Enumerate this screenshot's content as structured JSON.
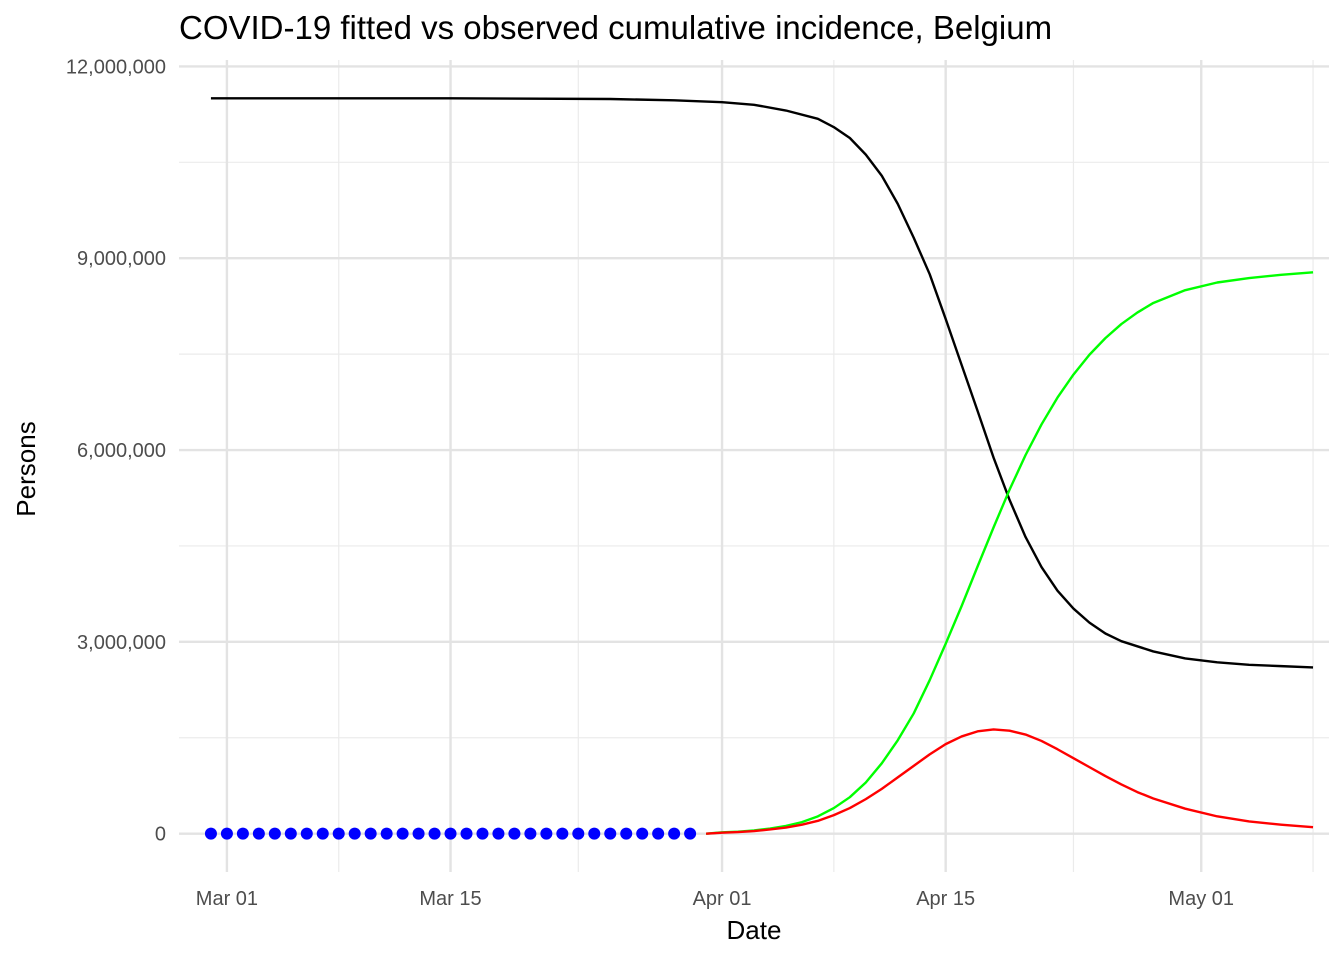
{
  "chart_data": {
    "type": "line",
    "title": "COVID-19 fitted vs observed cumulative incidence, Belgium",
    "xlabel": "Date",
    "ylabel": "Persons",
    "x_start": "2020-02-29",
    "x_end": "2020-05-08",
    "xlim": [
      "2020-02-27",
      "2020-05-09"
    ],
    "ylim": [
      -600000,
      12100000
    ],
    "x_ticks": [
      {
        "date": "2020-03-01",
        "label": "Mar 01"
      },
      {
        "date": "2020-03-15",
        "label": "Mar 15"
      },
      {
        "date": "2020-04-01",
        "label": "Apr 01"
      },
      {
        "date": "2020-04-15",
        "label": "Apr 15"
      },
      {
        "date": "2020-05-01",
        "label": "May 01"
      }
    ],
    "x_minor_ticks": [
      "2020-03-08",
      "2020-03-23",
      "2020-04-08",
      "2020-04-23",
      "2020-05-08"
    ],
    "y_ticks": [
      {
        "value": 0,
        "label": "0"
      },
      {
        "value": 3000000,
        "label": "3,000,000"
      },
      {
        "value": 6000000,
        "label": "6,000,000"
      },
      {
        "value": 9000000,
        "label": "9,000,000"
      },
      {
        "value": 12000000,
        "label": "12,000,000"
      }
    ],
    "grid": true,
    "legend": "none",
    "series": [
      {
        "color": "#000000",
        "style": "line",
        "points": [
          [
            "2020-02-29",
            11500000
          ],
          [
            "2020-03-15",
            11500000
          ],
          [
            "2020-03-25",
            11490000
          ],
          [
            "2020-03-29",
            11470000
          ],
          [
            "2020-04-01",
            11440000
          ],
          [
            "2020-04-03",
            11400000
          ],
          [
            "2020-04-05",
            11310000
          ],
          [
            "2020-04-07",
            11180000
          ],
          [
            "2020-04-08",
            11050000
          ],
          [
            "2020-04-09",
            10880000
          ],
          [
            "2020-04-10",
            10620000
          ],
          [
            "2020-04-11",
            10290000
          ],
          [
            "2020-04-12",
            9850000
          ],
          [
            "2020-04-13",
            9320000
          ],
          [
            "2020-04-14",
            8750000
          ],
          [
            "2020-04-15",
            8050000
          ],
          [
            "2020-04-16",
            7330000
          ],
          [
            "2020-04-17",
            6610000
          ],
          [
            "2020-04-18",
            5880000
          ],
          [
            "2020-04-19",
            5220000
          ],
          [
            "2020-04-20",
            4640000
          ],
          [
            "2020-04-21",
            4170000
          ],
          [
            "2020-04-22",
            3800000
          ],
          [
            "2020-04-23",
            3520000
          ],
          [
            "2020-04-24",
            3300000
          ],
          [
            "2020-04-25",
            3130000
          ],
          [
            "2020-04-26",
            3010000
          ],
          [
            "2020-04-28",
            2850000
          ],
          [
            "2020-04-30",
            2740000
          ],
          [
            "2020-05-02",
            2680000
          ],
          [
            "2020-05-04",
            2640000
          ],
          [
            "2020-05-06",
            2620000
          ],
          [
            "2020-05-08",
            2600000
          ]
        ]
      },
      {
        "color": "#00ff00",
        "style": "line",
        "points": [
          [
            "2020-03-31",
            0
          ],
          [
            "2020-04-01",
            20000
          ],
          [
            "2020-04-02",
            30000
          ],
          [
            "2020-04-03",
            50000
          ],
          [
            "2020-04-04",
            80000
          ],
          [
            "2020-04-05",
            120000
          ],
          [
            "2020-04-06",
            180000
          ],
          [
            "2020-04-07",
            270000
          ],
          [
            "2020-04-08",
            400000
          ],
          [
            "2020-04-09",
            570000
          ],
          [
            "2020-04-10",
            800000
          ],
          [
            "2020-04-11",
            1100000
          ],
          [
            "2020-04-12",
            1460000
          ],
          [
            "2020-04-13",
            1880000
          ],
          [
            "2020-04-14",
            2400000
          ],
          [
            "2020-04-15",
            2970000
          ],
          [
            "2020-04-16",
            3560000
          ],
          [
            "2020-04-17",
            4180000
          ],
          [
            "2020-04-18",
            4790000
          ],
          [
            "2020-04-19",
            5380000
          ],
          [
            "2020-04-20",
            5920000
          ],
          [
            "2020-04-21",
            6400000
          ],
          [
            "2020-04-22",
            6820000
          ],
          [
            "2020-04-23",
            7180000
          ],
          [
            "2020-04-24",
            7490000
          ],
          [
            "2020-04-25",
            7750000
          ],
          [
            "2020-04-26",
            7970000
          ],
          [
            "2020-04-27",
            8150000
          ],
          [
            "2020-04-28",
            8300000
          ],
          [
            "2020-04-30",
            8500000
          ],
          [
            "2020-05-02",
            8620000
          ],
          [
            "2020-05-04",
            8690000
          ],
          [
            "2020-05-06",
            8740000
          ],
          [
            "2020-05-08",
            8780000
          ]
        ]
      },
      {
        "color": "#ff0000",
        "style": "line",
        "points": [
          [
            "2020-03-31",
            0
          ],
          [
            "2020-04-01",
            15000
          ],
          [
            "2020-04-02",
            25000
          ],
          [
            "2020-04-03",
            40000
          ],
          [
            "2020-04-04",
            65000
          ],
          [
            "2020-04-05",
            95000
          ],
          [
            "2020-04-06",
            140000
          ],
          [
            "2020-04-07",
            200000
          ],
          [
            "2020-04-08",
            290000
          ],
          [
            "2020-04-09",
            400000
          ],
          [
            "2020-04-10",
            540000
          ],
          [
            "2020-04-11",
            700000
          ],
          [
            "2020-04-12",
            880000
          ],
          [
            "2020-04-13",
            1060000
          ],
          [
            "2020-04-14",
            1240000
          ],
          [
            "2020-04-15",
            1400000
          ],
          [
            "2020-04-16",
            1520000
          ],
          [
            "2020-04-17",
            1600000
          ],
          [
            "2020-04-18",
            1630000
          ],
          [
            "2020-04-19",
            1610000
          ],
          [
            "2020-04-20",
            1550000
          ],
          [
            "2020-04-21",
            1450000
          ],
          [
            "2020-04-22",
            1320000
          ],
          [
            "2020-04-23",
            1180000
          ],
          [
            "2020-04-24",
            1040000
          ],
          [
            "2020-04-25",
            900000
          ],
          [
            "2020-04-26",
            770000
          ],
          [
            "2020-04-27",
            650000
          ],
          [
            "2020-04-28",
            550000
          ],
          [
            "2020-04-30",
            390000
          ],
          [
            "2020-05-02",
            270000
          ],
          [
            "2020-05-04",
            190000
          ],
          [
            "2020-05-06",
            140000
          ],
          [
            "2020-05-08",
            100000
          ]
        ]
      },
      {
        "color": "#0000ff",
        "style": "points",
        "start_date": "2020-02-29",
        "values": [
          0,
          0,
          0,
          0,
          0,
          0,
          0,
          0,
          0,
          0,
          0,
          0,
          0,
          0,
          0,
          0,
          0,
          0,
          0,
          0,
          0,
          0,
          0,
          0,
          0,
          0,
          0,
          0,
          0,
          0,
          0
        ]
      }
    ]
  }
}
